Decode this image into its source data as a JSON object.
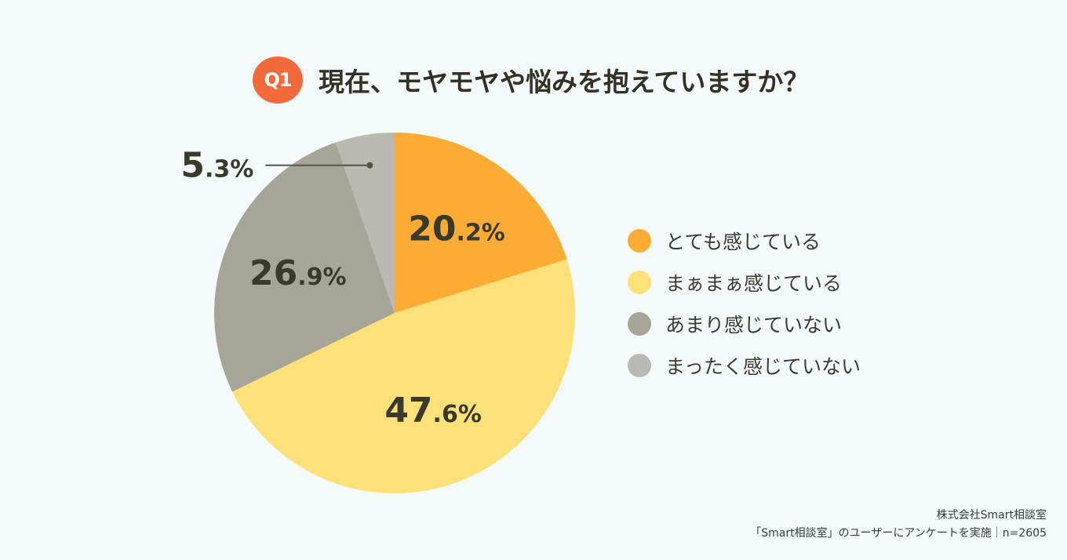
{
  "header": {
    "badge": "Q1",
    "question": "現在、モヤモヤや悩みを抱えていますか？"
  },
  "chart_data": {
    "type": "pie",
    "categories": [
      "とても感じている",
      "まぁまぁ感じている",
      "あまり感じていない",
      "まったく感じていない"
    ],
    "values": [
      20.2,
      47.6,
      26.9,
      5.3
    ],
    "value_labels": [
      "20.2%",
      "47.6%",
      "26.9%",
      "5.3%"
    ],
    "colors": [
      "#fcac34",
      "#fde078",
      "#a6a597",
      "#bbbab2"
    ],
    "start_angle": "12 o'clock, clockwise",
    "legend_placement": "right"
  },
  "legend": {
    "items": [
      {
        "label": "とても感じている",
        "color": "#fcac34"
      },
      {
        "label": "まぁまぁ感じている",
        "color": "#fde078"
      },
      {
        "label": "あまり感じていない",
        "color": "#a6a597"
      },
      {
        "label": "まったく感じていない",
        "color": "#bbbab2"
      }
    ]
  },
  "footer": {
    "line1": "株式会社Smart相談室",
    "line2": "「Smart相談室」のユーザーにアンケートを実施｜n=2605"
  }
}
